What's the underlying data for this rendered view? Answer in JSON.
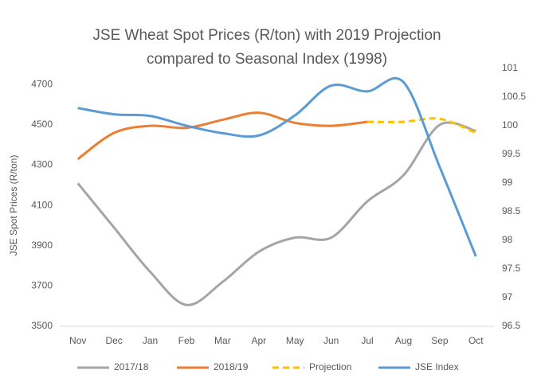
{
  "chart_data": {
    "type": "line",
    "title": "JSE Wheat Spot Prices (R/ton) with 2019 Projection",
    "subtitle": "compared to Seasonal Index (1998)",
    "y_label": "JSE Spot Prices (R/ton)",
    "categories": [
      "Nov",
      "Dec",
      "Jan",
      "Feb",
      "Mar",
      "Apr",
      "May",
      "Jun",
      "Jul",
      "Aug",
      "Sep",
      "Oct"
    ],
    "ylim": [
      3500,
      4780
    ],
    "yticks": [
      3500,
      3700,
      3900,
      4100,
      4300,
      4500,
      4700
    ],
    "y2lim": [
      96.5,
      101
    ],
    "y2ticks": [
      96.5,
      97,
      97.5,
      98,
      98.5,
      99,
      99.5,
      100,
      100.5,
      101
    ],
    "grid": false,
    "legend": "bottom",
    "series": [
      {
        "name": "2017/18",
        "color": "#a5a5a5",
        "values": [
          4210,
          3990,
          3770,
          3606,
          3720,
          3870,
          3940,
          3940,
          4120,
          4250,
          4500,
          4470
        ]
      },
      {
        "name": "2018/19",
        "color": "#ed7d31",
        "values": [
          4330,
          4460,
          4495,
          4485,
          4525,
          4560,
          4510,
          4495,
          4515,
          null,
          null,
          null
        ]
      },
      {
        "name": "Projection",
        "color": "#ffc000",
        "dashed": true,
        "values": [
          null,
          null,
          null,
          null,
          null,
          null,
          null,
          null,
          4515,
          4515,
          4530,
          4460
        ]
      },
      {
        "name": "JSE Index",
        "color": "#5b9bd5",
        "axis": "y2",
        "values": [
          100.31,
          100.2,
          100.17,
          100,
          99.87,
          99.83,
          100.18,
          100.7,
          100.6,
          100.76,
          99.28,
          97.72
        ]
      }
    ]
  }
}
